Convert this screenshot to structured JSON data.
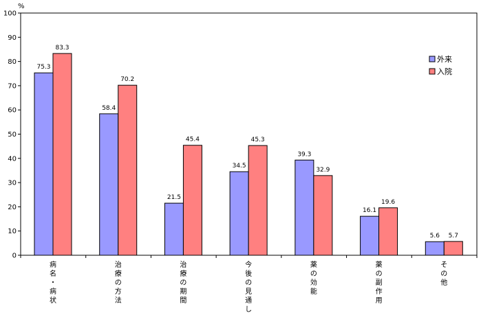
{
  "chart_data": {
    "type": "bar",
    "ylabel": "%",
    "ylim": [
      0,
      100
    ],
    "yticks": [
      0,
      10,
      20,
      30,
      40,
      50,
      60,
      70,
      80,
      90,
      100
    ],
    "categories": [
      "病名・病状",
      "治療の方法",
      "治療の期間",
      "今後の見通し",
      "薬の効能",
      "薬の副作用",
      "その他"
    ],
    "series": [
      {
        "name": "外来",
        "color": "#9999ff",
        "values": [
          75.3,
          58.4,
          21.5,
          34.5,
          39.3,
          16.1,
          5.6
        ]
      },
      {
        "name": "入院",
        "color": "#ff8080",
        "values": [
          83.3,
          70.2,
          45.4,
          45.3,
          32.9,
          19.6,
          5.7
        ]
      }
    ],
    "legend_position": "right",
    "grid": false
  }
}
